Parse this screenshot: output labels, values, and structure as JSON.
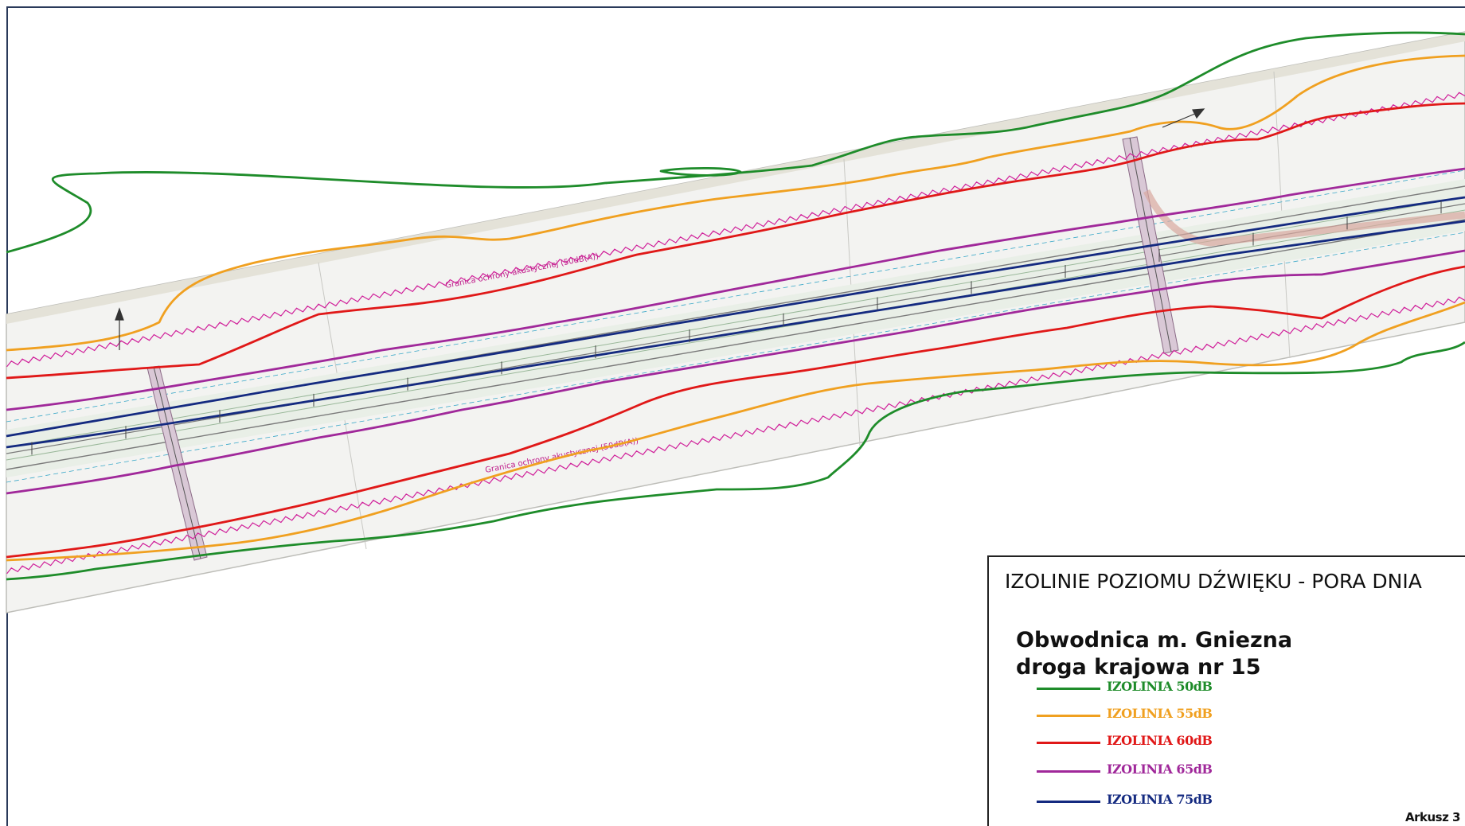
{
  "legend": {
    "title": "IZOLINIE POZIOMU DŹWIĘKU - PORA DNIA",
    "road_name_line1": "Obwodnica m. Gniezna",
    "road_name_line2": "droga krajowa nr 15",
    "items": [
      {
        "label": "IZOLINIA 50dB",
        "color": "#1e8c2a"
      },
      {
        "label": "IZOLINIA 55dB",
        "color": "#f0a020"
      },
      {
        "label": "IZOLINIA 60dB",
        "color": "#e01818"
      },
      {
        "label": "IZOLINIA 65dB",
        "color": "#a0289a"
      },
      {
        "label": "IZOLINIA 75dB",
        "color": "#142a80"
      }
    ]
  },
  "sheet_label": "Arkusz 3",
  "map": {
    "acoustic_boundary_upper": "Granica ochrony akustycznej (50dB(A))",
    "acoustic_boundary_lower": "Granica ochrony akustycznej (50dB(A))",
    "boundary_color": "#d0209a",
    "plan_line_color": "#3aa8c8",
    "road_color": "#7a7a7a"
  }
}
